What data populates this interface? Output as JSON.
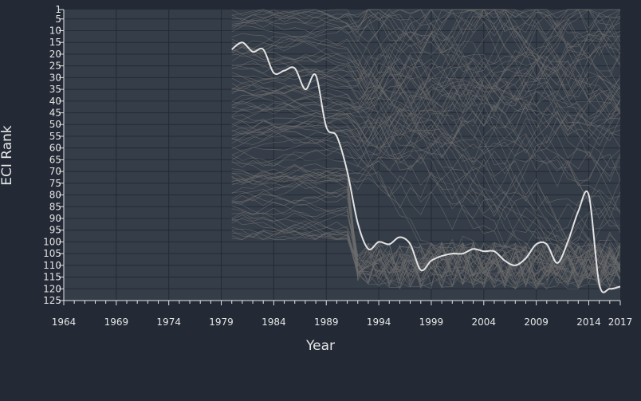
{
  "chart_data": {
    "type": "line",
    "xlabel": "Year",
    "ylabel": "ECI Rank",
    "xlim": [
      1964,
      2017
    ],
    "ylim": [
      1,
      125
    ],
    "y_inverted": true,
    "x_ticks": [
      "1964",
      "1969",
      "1974",
      "1979",
      "1984",
      "1989",
      "1994",
      "1999",
      "2004",
      "2009",
      "2014",
      "2017"
    ],
    "y_ticks": [
      "1",
      "5",
      "10",
      "15",
      "20",
      "25",
      "30",
      "35",
      "40",
      "45",
      "50",
      "55",
      "60",
      "65",
      "70",
      "75",
      "80",
      "85",
      "90",
      "95",
      "100",
      "105",
      "110",
      "115",
      "120",
      "125"
    ],
    "grid": true,
    "highlight_series": {
      "x": [
        1980,
        1981,
        1982,
        1983,
        1984,
        1985,
        1986,
        1987,
        1988,
        1989,
        1990,
        1991,
        1992,
        1993,
        1994,
        1995,
        1996,
        1997,
        1998,
        1999,
        2000,
        2001,
        2002,
        2003,
        2004,
        2005,
        2006,
        2007,
        2008,
        2009,
        2010,
        2011,
        2012,
        2013,
        2014,
        2015,
        2016,
        2017
      ],
      "values": [
        18,
        15,
        19,
        18,
        28,
        27,
        26,
        35,
        29,
        51,
        55,
        70,
        92,
        103,
        100,
        101,
        98,
        101,
        112,
        108,
        106,
        105,
        105,
        103,
        104,
        104,
        108,
        110,
        107,
        101,
        101,
        109,
        100,
        87,
        80,
        118,
        120,
        119
      ]
    },
    "background_series_count": 100
  },
  "colors": {
    "background": "#232a35",
    "plot_area": "#353d48",
    "grid": "#232a35",
    "background_lines": "#6c6c6c",
    "highlight_line": "#e3e3e3",
    "text": "#e6e6e6"
  }
}
